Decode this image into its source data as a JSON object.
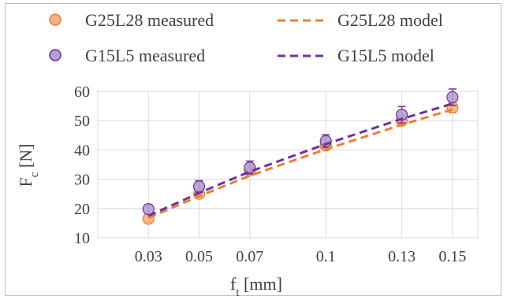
{
  "chart_data": {
    "type": "scatter",
    "title": "",
    "xlabel": "f",
    "xlabel_sub": "t",
    "xlabel_unit": " [mm]",
    "ylabel": "F",
    "ylabel_sub": "c",
    "ylabel_unit": " [N]",
    "x_ticks": [
      0.03,
      0.05,
      0.07,
      0.1,
      0.13,
      0.15
    ],
    "x_tick_labels": [
      "0.03",
      "0.05",
      "0.07",
      "0.1",
      "0.13",
      "0.15"
    ],
    "xlim": [
      0.01,
      0.16
    ],
    "ylim": [
      10,
      60
    ],
    "y_ticks": [
      10,
      20,
      30,
      40,
      50,
      60
    ],
    "y_tick_labels": [
      "10",
      "20",
      "30",
      "40",
      "50",
      "60"
    ],
    "grid": true,
    "legend_position": "top",
    "series": [
      {
        "name": "G25L28 measured",
        "kind": "markers",
        "color": "#ed7d31",
        "x": [
          0.03,
          0.05,
          0.07,
          0.1,
          0.13,
          0.15
        ],
        "y": [
          16.5,
          25,
          33,
          41.5,
          50,
          54.5
        ],
        "err": [
          1.2,
          1.2,
          1.3,
          1.5,
          1.5,
          1.8
        ]
      },
      {
        "name": "G25L28 model",
        "kind": "line",
        "color": "#ed7d31",
        "x": [
          0.03,
          0.05,
          0.07,
          0.1,
          0.13,
          0.15
        ],
        "y": [
          16.8,
          24.2,
          31.2,
          40.2,
          48.6,
          53.8
        ]
      },
      {
        "name": "G15L5 measured",
        "kind": "markers",
        "color": "#7030a0",
        "x": [
          0.03,
          0.05,
          0.07,
          0.1,
          0.13,
          0.15
        ],
        "y": [
          19.8,
          27.5,
          34,
          43,
          52,
          58
        ],
        "err": [
          1.5,
          2.0,
          2.2,
          2.2,
          2.8,
          2.8
        ]
      },
      {
        "name": "G15L5 model",
        "kind": "line",
        "color": "#7030a0",
        "x": [
          0.03,
          0.05,
          0.07,
          0.1,
          0.13,
          0.15
        ],
        "y": [
          17.5,
          25.3,
          32.6,
          42.0,
          50.6,
          55.8
        ]
      }
    ]
  }
}
